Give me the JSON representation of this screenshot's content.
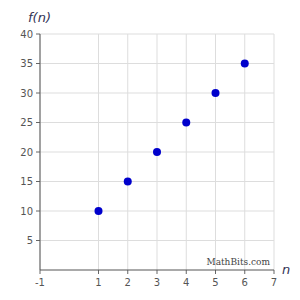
{
  "chart_data": {
    "type": "scatter",
    "x": [
      1,
      2,
      3,
      4,
      5,
      6
    ],
    "values": [
      10,
      15,
      20,
      25,
      30,
      35
    ],
    "color": "#0000CC",
    "xlim": [
      -1,
      7
    ],
    "ylim": [
      0,
      40
    ],
    "xticks": [
      -1,
      1,
      2,
      3,
      4,
      5,
      6,
      7
    ],
    "yticks": [
      5,
      10,
      15,
      20,
      25,
      30,
      35,
      40
    ],
    "x_label": "n",
    "y_label": "f(n)",
    "annotations": [
      "MathBits.com"
    ],
    "grid": true
  }
}
